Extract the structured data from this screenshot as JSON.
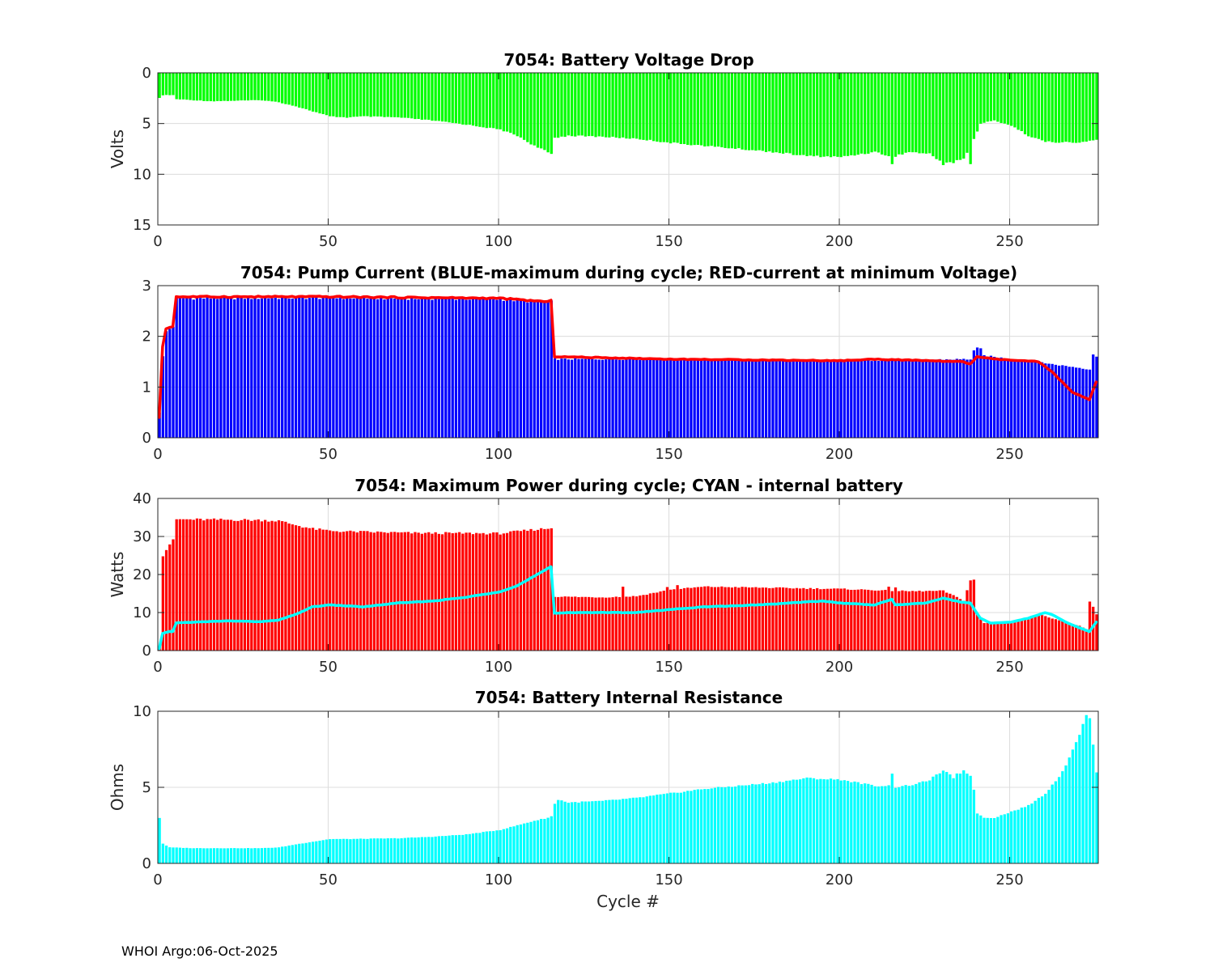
{
  "footer": "WHOI Argo:06-Oct-2025",
  "colors": {
    "green": "#00ff00",
    "blue": "#0000ff",
    "red": "#ff0000",
    "cyan": "#00ffff",
    "grid": "#dcdcdc",
    "axis": "#262626"
  },
  "chart_data": [
    {
      "id": "p1",
      "type": "bar",
      "title": "7054: Battery Voltage Drop",
      "xlabel": "",
      "ylabel": "Volts",
      "xlim": [
        0,
        276
      ],
      "ylim": [
        0,
        15
      ],
      "y_reversed": true,
      "xticks": [
        0,
        50,
        100,
        150,
        200,
        250
      ],
      "yticks": [
        0,
        5,
        10,
        15
      ],
      "grid": true,
      "series": [
        {
          "name": "voltage drop",
          "kind": "bar",
          "color": "#00ff00",
          "anchors": [
            [
              0,
              2.5
            ],
            [
              1,
              2.2
            ],
            [
              4,
              2.2
            ],
            [
              5,
              2.6
            ],
            [
              15,
              2.8
            ],
            [
              30,
              2.7
            ],
            [
              35,
              2.9
            ],
            [
              40,
              3.3
            ],
            [
              45,
              3.8
            ],
            [
              50,
              4.3
            ],
            [
              55,
              4.4
            ],
            [
              60,
              4.3
            ],
            [
              70,
              4.4
            ],
            [
              80,
              4.7
            ],
            [
              90,
              5.1
            ],
            [
              100,
              5.6
            ],
            [
              105,
              6.2
            ],
            [
              110,
              7.2
            ],
            [
              115,
              8.0
            ],
            [
              116,
              6.4
            ],
            [
              120,
              6.2
            ],
            [
              130,
              6.3
            ],
            [
              140,
              6.5
            ],
            [
              150,
              6.9
            ],
            [
              160,
              7.2
            ],
            [
              170,
              7.5
            ],
            [
              180,
              7.8
            ],
            [
              190,
              8.2
            ],
            [
              200,
              8.3
            ],
            [
              210,
              7.8
            ],
            [
              215,
              8.3
            ],
            [
              220,
              7.8
            ],
            [
              226,
              8.0
            ],
            [
              230,
              8.9
            ],
            [
              236,
              8.5
            ],
            [
              238,
              7.3
            ],
            [
              241,
              5.0
            ],
            [
              245,
              4.7
            ],
            [
              250,
              5.2
            ],
            [
              255,
              6.2
            ],
            [
              260,
              6.8
            ],
            [
              270,
              6.9
            ],
            [
              275,
              6.6
            ]
          ],
          "spikes": [
            [
              215,
              9.0
            ],
            [
              230,
              9.1
            ],
            [
              233,
              8.9
            ],
            [
              238,
              9.0
            ]
          ]
        }
      ]
    },
    {
      "id": "p2",
      "type": "bar",
      "title": "7054: Pump Current (BLUE-maximum during cycle; RED-current at minimum Voltage)",
      "xlabel": "",
      "ylabel": "",
      "xlim": [
        0,
        276
      ],
      "ylim": [
        0,
        3
      ],
      "y_reversed": false,
      "xticks": [
        0,
        50,
        100,
        150,
        200,
        250
      ],
      "yticks": [
        0,
        1,
        2,
        3
      ],
      "grid": true,
      "series": [
        {
          "name": "maximum during cycle",
          "kind": "bar",
          "color": "#0000ff",
          "anchors": [
            [
              0,
              0.5
            ],
            [
              1,
              1.6
            ],
            [
              2,
              2.1
            ],
            [
              4,
              2.2
            ],
            [
              5,
              2.75
            ],
            [
              50,
              2.76
            ],
            [
              100,
              2.73
            ],
            [
              110,
              2.68
            ],
            [
              115,
              2.68
            ],
            [
              116,
              1.55
            ],
            [
              150,
              1.55
            ],
            [
              200,
              1.52
            ],
            [
              238,
              1.55
            ],
            [
              239,
              1.72
            ],
            [
              241,
              1.75
            ],
            [
              242,
              1.62
            ],
            [
              250,
              1.55
            ],
            [
              258,
              1.5
            ],
            [
              262,
              1.45
            ],
            [
              270,
              1.38
            ],
            [
              273,
              1.35
            ],
            [
              274,
              1.65
            ],
            [
              275,
              1.6
            ]
          ],
          "spikes": [
            [
              240,
              1.78
            ]
          ]
        },
        {
          "name": "current at minimum Voltage",
          "kind": "line",
          "color": "#ff0000",
          "anchors": [
            [
              0,
              0.4
            ],
            [
              1,
              1.8
            ],
            [
              2,
              2.15
            ],
            [
              4,
              2.2
            ],
            [
              5,
              2.78
            ],
            [
              50,
              2.78
            ],
            [
              100,
              2.75
            ],
            [
              110,
              2.7
            ],
            [
              114,
              2.68
            ],
            [
              115,
              2.7
            ],
            [
              116,
              1.6
            ],
            [
              150,
              1.55
            ],
            [
              200,
              1.52
            ],
            [
              210,
              1.55
            ],
            [
              236,
              1.5
            ],
            [
              238,
              1.45
            ],
            [
              240,
              1.6
            ],
            [
              245,
              1.55
            ],
            [
              258,
              1.5
            ],
            [
              262,
              1.3
            ],
            [
              268,
              0.9
            ],
            [
              273,
              0.75
            ],
            [
              275,
              1.1
            ]
          ]
        }
      ]
    },
    {
      "id": "p3",
      "type": "bar",
      "title": "7054: Maximum Power during cycle; CYAN - internal battery",
      "xlabel": "",
      "ylabel": "Watts",
      "xlim": [
        0,
        276
      ],
      "ylim": [
        0,
        40
      ],
      "y_reversed": false,
      "xticks": [
        0,
        50,
        100,
        150,
        200,
        250
      ],
      "yticks": [
        0,
        10,
        20,
        30,
        40
      ],
      "grid": true,
      "series": [
        {
          "name": "maximum power",
          "kind": "bar",
          "color": "#ff0000",
          "anchors": [
            [
              0,
              1
            ],
            [
              1,
              25
            ],
            [
              3,
              28
            ],
            [
              4,
              29
            ],
            [
              5,
              34.5
            ],
            [
              30,
              34.3
            ],
            [
              35,
              34.1
            ],
            [
              40,
              33
            ],
            [
              45,
              32
            ],
            [
              50,
              31.5
            ],
            [
              55,
              31.3
            ],
            [
              75,
              30.9
            ],
            [
              100,
              30.8
            ],
            [
              110,
              31.8
            ],
            [
              115,
              32.2
            ],
            [
              116,
              14.2
            ],
            [
              130,
              14
            ],
            [
              140,
              14.3
            ],
            [
              150,
              16
            ],
            [
              160,
              16.8
            ],
            [
              180,
              16.5
            ],
            [
              200,
              16.2
            ],
            [
              220,
              15.6
            ],
            [
              230,
              15.7
            ],
            [
              236,
              13.2
            ],
            [
              238,
              18.5
            ],
            [
              239,
              18.6
            ],
            [
              240,
              9.5
            ],
            [
              242,
              7.2
            ],
            [
              250,
              7.7
            ],
            [
              255,
              8.5
            ],
            [
              258,
              9.5
            ],
            [
              262,
              8.5
            ],
            [
              270,
              6.5
            ],
            [
              272,
              5.5
            ],
            [
              273,
              12.8
            ],
            [
              274,
              11.5
            ],
            [
              275,
              9.5
            ]
          ],
          "spikes": [
            [
              136,
              16.8
            ],
            [
              149,
              16.7
            ],
            [
              152,
              17.2
            ],
            [
              214,
              16.8
            ],
            [
              216,
              16.6
            ]
          ]
        },
        {
          "name": "internal battery",
          "kind": "line",
          "color": "#00ffff",
          "anchors": [
            [
              0,
              0.5
            ],
            [
              1,
              4.5
            ],
            [
              3,
              5
            ],
            [
              4,
              5
            ],
            [
              5,
              7.3
            ],
            [
              20,
              7.8
            ],
            [
              30,
              7.6
            ],
            [
              35,
              8
            ],
            [
              40,
              9.5
            ],
            [
              45,
              11.5
            ],
            [
              50,
              12
            ],
            [
              60,
              11.5
            ],
            [
              70,
              12.5
            ],
            [
              80,
              13
            ],
            [
              90,
              14
            ],
            [
              100,
              15.5
            ],
            [
              105,
              17
            ],
            [
              110,
              19.5
            ],
            [
              114,
              21.5
            ],
            [
              115,
              22
            ],
            [
              116,
              9.8
            ],
            [
              120,
              10
            ],
            [
              130,
              10
            ],
            [
              140,
              10
            ],
            [
              150,
              10.8
            ],
            [
              160,
              11.5
            ],
            [
              170,
              11.8
            ],
            [
              180,
              12.2
            ],
            [
              190,
              12.8
            ],
            [
              195,
              13
            ],
            [
              200,
              12.5
            ],
            [
              210,
              12
            ],
            [
              215,
              13.5
            ],
            [
              216,
              12
            ],
            [
              225,
              12.5
            ],
            [
              230,
              13.8
            ],
            [
              235,
              12.8
            ],
            [
              238,
              12.5
            ],
            [
              241,
              8.5
            ],
            [
              244,
              7.2
            ],
            [
              250,
              7.5
            ],
            [
              255,
              8.5
            ],
            [
              260,
              10
            ],
            [
              262,
              9.5
            ],
            [
              266,
              7.5
            ],
            [
              270,
              6
            ],
            [
              273,
              5
            ],
            [
              275,
              7.5
            ]
          ]
        }
      ]
    },
    {
      "id": "p4",
      "type": "bar",
      "title": "7054: Battery Internal Resistance",
      "xlabel": "Cycle #",
      "ylabel": "Ohms",
      "xlim": [
        0,
        276
      ],
      "ylim": [
        0,
        10
      ],
      "y_reversed": false,
      "xticks": [
        0,
        50,
        100,
        150,
        200,
        250
      ],
      "yticks": [
        0,
        5,
        10
      ],
      "grid": true,
      "series": [
        {
          "name": "internal resistance",
          "kind": "bar",
          "color": "#00ffff",
          "anchors": [
            [
              0,
              3.0
            ],
            [
              1,
              1.3
            ],
            [
              3,
              1.05
            ],
            [
              10,
              1.0
            ],
            [
              30,
              1.0
            ],
            [
              35,
              1.05
            ],
            [
              40,
              1.25
            ],
            [
              50,
              1.6
            ],
            [
              55,
              1.6
            ],
            [
              70,
              1.65
            ],
            [
              80,
              1.75
            ],
            [
              90,
              1.9
            ],
            [
              100,
              2.2
            ],
            [
              105,
              2.5
            ],
            [
              110,
              2.8
            ],
            [
              114,
              3.0
            ],
            [
              115,
              3.1
            ],
            [
              116,
              3.9
            ],
            [
              117,
              4.2
            ],
            [
              120,
              4.0
            ],
            [
              130,
              4.1
            ],
            [
              140,
              4.3
            ],
            [
              150,
              4.6
            ],
            [
              160,
              4.9
            ],
            [
              170,
              5.1
            ],
            [
              180,
              5.3
            ],
            [
              190,
              5.6
            ],
            [
              200,
              5.5
            ],
            [
              205,
              5.3
            ],
            [
              210,
              5.1
            ],
            [
              214,
              5.1
            ],
            [
              216,
              5.0
            ],
            [
              222,
              5.2
            ],
            [
              226,
              5.5
            ],
            [
              230,
              6.1
            ],
            [
              232,
              5.8
            ],
            [
              236,
              6.1
            ],
            [
              238,
              5.8
            ],
            [
              239,
              4.8
            ],
            [
              240,
              3.3
            ],
            [
              242,
              3.0
            ],
            [
              245,
              3.0
            ],
            [
              250,
              3.4
            ],
            [
              255,
              3.8
            ],
            [
              260,
              4.6
            ],
            [
              265,
              6.0
            ],
            [
              268,
              7.5
            ],
            [
              270,
              8.5
            ],
            [
              271,
              9.2
            ],
            [
              272,
              9.7
            ],
            [
              273,
              9.5
            ],
            [
              274,
              7.8
            ],
            [
              275,
              6.0
            ]
          ],
          "spikes": [
            [
              215,
              5.9
            ],
            [
              233,
              5.6
            ],
            [
              235,
              5.9
            ]
          ]
        }
      ]
    }
  ]
}
